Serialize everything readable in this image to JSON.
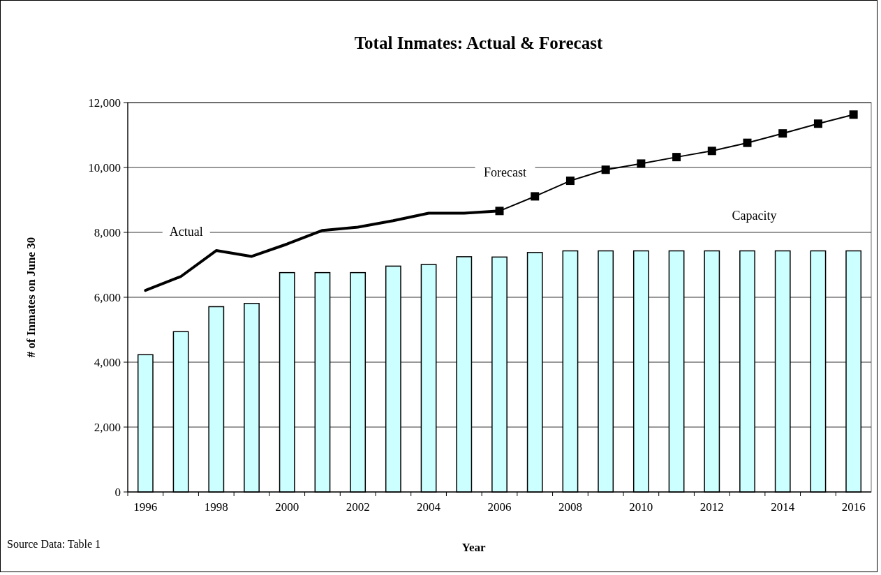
{
  "chart_data": {
    "type": "bar",
    "title": "Total Inmates: Actual & Forecast",
    "xlabel": "Year",
    "ylabel": "# of Inmates on June 30",
    "annotations": [
      "Source Data: Table 1"
    ],
    "categories": [
      "1996",
      null,
      "1998",
      null,
      "2000",
      null,
      "2002",
      null,
      "2004",
      null,
      "2006",
      null,
      "2008",
      null,
      "2010",
      null,
      "2012",
      null,
      "2014",
      null,
      "2016"
    ],
    "series": [
      {
        "name": "Capacity",
        "color": "#ccffff",
        "values": [
          4230,
          4940,
          5710,
          5810,
          6760,
          6760,
          6760,
          6960,
          7010,
          7250,
          7240,
          7380,
          7430,
          7430,
          7430,
          7430,
          7430,
          7430,
          7430,
          7430,
          7430
        ]
      },
      {
        "name": "Actual",
        "type": "line",
        "color": "#000000",
        "marker": "none",
        "values": [
          6210,
          6640,
          7440,
          7260,
          7640,
          8060,
          8160,
          8360,
          8590,
          8590,
          8660,
          null,
          null,
          null,
          null,
          null,
          null,
          null,
          null,
          null,
          null
        ]
      },
      {
        "name": "Forecast",
        "type": "line",
        "color": "#000000",
        "marker": "square",
        "values": [
          null,
          null,
          null,
          null,
          null,
          null,
          null,
          null,
          null,
          null,
          8660,
          9110,
          9590,
          9930,
          10120,
          10320,
          10510,
          10760,
          11050,
          11350,
          11630
        ]
      }
    ],
    "ylim": [
      0,
      12000
    ],
    "yticks": [
      {
        "value": 0,
        "label": "0"
      },
      {
        "value": 2000,
        "label": "2,000"
      },
      {
        "value": 4000,
        "label": "4,000"
      },
      {
        "value": 6000,
        "label": "6,000"
      },
      {
        "value": 8000,
        "label": "8,000"
      },
      {
        "value": 10000,
        "label": "10,000"
      },
      {
        "value": 12000,
        "label": "12,000"
      }
    ],
    "grid": "y"
  }
}
